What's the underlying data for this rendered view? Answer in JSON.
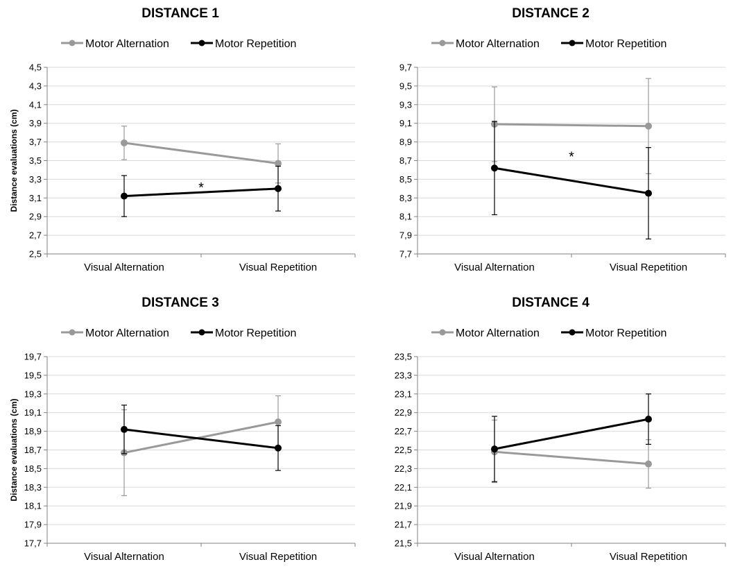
{
  "colors": {
    "motor_alternation": "#999999",
    "motor_repetition": "#000000",
    "grid": "#d9d9d9",
    "axis": "#808080"
  },
  "legend": {
    "motor_alternation": "Motor Alternation",
    "motor_repetition": "Motor Repetition"
  },
  "chart_data": [
    {
      "type": "line",
      "title": "DISTANCE 1",
      "xlabel": "",
      "ylabel": "Distance evaluations (cm)",
      "categories": [
        "Visual Alternation",
        "Visual Repetition"
      ],
      "yticks": [
        "2,5",
        "2,7",
        "2,9",
        "3,1",
        "3,3",
        "3,5",
        "3,7",
        "3,9",
        "4,1",
        "4,3",
        "4,5"
      ],
      "ylim": [
        2.5,
        4.5
      ],
      "grid": true,
      "legend_position": "top",
      "series": [
        {
          "name": "Motor Alternation",
          "values": [
            3.69,
            3.47
          ],
          "err_low": [
            3.51,
            3.26
          ],
          "err_high": [
            3.87,
            3.68
          ]
        },
        {
          "name": "Motor Repetition",
          "values": [
            3.12,
            3.2
          ],
          "err_low": [
            2.9,
            2.96
          ],
          "err_high": [
            3.34,
            3.44
          ]
        }
      ],
      "annotations": [
        {
          "text": "*",
          "x": 0.5,
          "y": 3.25
        }
      ]
    },
    {
      "type": "line",
      "title": "DISTANCE 2",
      "xlabel": "",
      "ylabel": "",
      "categories": [
        "Visual Alternation",
        "Visual Repetition"
      ],
      "yticks": [
        "7,7",
        "7,9",
        "8,1",
        "8,3",
        "8,5",
        "8,7",
        "8,9",
        "9,1",
        "9,3",
        "9,5",
        "9,7"
      ],
      "ylim": [
        7.7,
        9.7
      ],
      "grid": true,
      "legend_position": "top",
      "series": [
        {
          "name": "Motor Alternation",
          "values": [
            9.09,
            9.07
          ],
          "err_low": [
            8.69,
            8.56
          ],
          "err_high": [
            9.49,
            9.58
          ]
        },
        {
          "name": "Motor Repetition",
          "values": [
            8.62,
            8.35
          ],
          "err_low": [
            8.12,
            7.86
          ],
          "err_high": [
            9.12,
            8.84
          ]
        }
      ],
      "annotations": [
        {
          "text": "*",
          "x": 0.5,
          "y": 8.78
        }
      ]
    },
    {
      "type": "line",
      "title": "DISTANCE 3",
      "xlabel": "",
      "ylabel": "Distance evaluations (cm)",
      "categories": [
        "Visual Alternation",
        "Visual Repetition"
      ],
      "yticks": [
        "17,7",
        "17,9",
        "18,1",
        "18,3",
        "18,5",
        "18,7",
        "18,9",
        "19,1",
        "19,3",
        "19,5",
        "19,7"
      ],
      "ylim": [
        17.7,
        19.7
      ],
      "grid": true,
      "legend_position": "top",
      "series": [
        {
          "name": "Motor Alternation",
          "values": [
            18.67,
            19.0
          ],
          "err_low": [
            18.21,
            18.72
          ],
          "err_high": [
            19.13,
            19.28
          ]
        },
        {
          "name": "Motor Repetition",
          "values": [
            18.92,
            18.72
          ],
          "err_low": [
            18.66,
            18.48
          ],
          "err_high": [
            19.18,
            18.96
          ]
        }
      ],
      "annotations": []
    },
    {
      "type": "line",
      "title": "DISTANCE 4",
      "xlabel": "",
      "ylabel": "",
      "categories": [
        "Visual Alternation",
        "Visual Repetition"
      ],
      "yticks": [
        "21,5",
        "21,7",
        "21,9",
        "22,1",
        "22,3",
        "22,5",
        "22,7",
        "22,9",
        "23,1",
        "23,3",
        "23,5"
      ],
      "ylim": [
        21.5,
        23.5
      ],
      "grid": true,
      "legend_position": "top",
      "series": [
        {
          "name": "Motor Alternation",
          "values": [
            22.48,
            22.35
          ],
          "err_low": [
            22.15,
            22.09
          ],
          "err_high": [
            22.82,
            22.61
          ]
        },
        {
          "name": "Motor Repetition",
          "values": [
            22.51,
            22.83
          ],
          "err_low": [
            22.16,
            22.56
          ],
          "err_high": [
            22.86,
            23.1
          ]
        }
      ],
      "annotations": []
    }
  ]
}
